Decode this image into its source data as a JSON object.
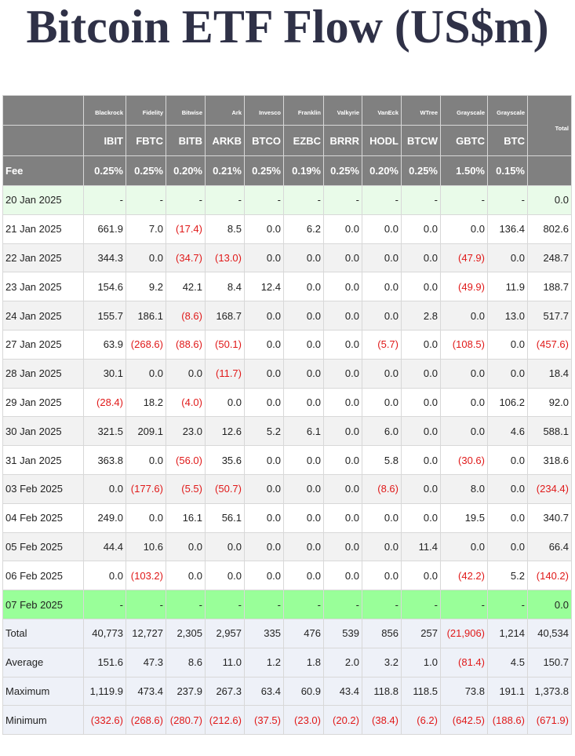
{
  "title": "Bitcoin ETF Flow (US$m)",
  "columns": [
    {
      "sponsor": "Blackrock",
      "ticker": "IBIT",
      "fee": "0.25%"
    },
    {
      "sponsor": "Fidelity",
      "ticker": "FBTC",
      "fee": "0.25%"
    },
    {
      "sponsor": "Bitwise",
      "ticker": "BITB",
      "fee": "0.20%"
    },
    {
      "sponsor": "Ark",
      "ticker": "ARKB",
      "fee": "0.21%"
    },
    {
      "sponsor": "Invesco",
      "ticker": "BTCO",
      "fee": "0.25%"
    },
    {
      "sponsor": "Franklin",
      "ticker": "EZBC",
      "fee": "0.19%"
    },
    {
      "sponsor": "Valkyrie",
      "ticker": "BRRR",
      "fee": "0.25%"
    },
    {
      "sponsor": "VanEck",
      "ticker": "HODL",
      "fee": "0.20%"
    },
    {
      "sponsor": "WTree",
      "ticker": "BTCW",
      "fee": "0.25%"
    },
    {
      "sponsor": "Grayscale",
      "ticker": "GBTC",
      "fee": "1.50%"
    },
    {
      "sponsor": "Grayscale",
      "ticker": "BTC",
      "fee": "0.15%"
    }
  ],
  "total_label": "Total",
  "fee_label": "Fee",
  "rows": [
    {
      "date": "20 Jan 2025",
      "style": "hl-light",
      "values": [
        "-",
        "-",
        "-",
        "-",
        "-",
        "-",
        "-",
        "-",
        "-",
        "-",
        "-"
      ],
      "total": "0.0"
    },
    {
      "date": "21 Jan 2025",
      "style": "even",
      "values": [
        "661.9",
        "7.0",
        "(17.4)",
        "8.5",
        "0.0",
        "6.2",
        "0.0",
        "0.0",
        "0.0",
        "0.0",
        "136.4"
      ],
      "total": "802.6"
    },
    {
      "date": "22 Jan 2025",
      "style": "odd",
      "values": [
        "344.3",
        "0.0",
        "(34.7)",
        "(13.0)",
        "0.0",
        "0.0",
        "0.0",
        "0.0",
        "0.0",
        "(47.9)",
        "0.0"
      ],
      "total": "248.7"
    },
    {
      "date": "23 Jan 2025",
      "style": "even",
      "values": [
        "154.6",
        "9.2",
        "42.1",
        "8.4",
        "12.4",
        "0.0",
        "0.0",
        "0.0",
        "0.0",
        "(49.9)",
        "11.9"
      ],
      "total": "188.7"
    },
    {
      "date": "24 Jan 2025",
      "style": "odd",
      "values": [
        "155.7",
        "186.1",
        "(8.6)",
        "168.7",
        "0.0",
        "0.0",
        "0.0",
        "0.0",
        "2.8",
        "0.0",
        "13.0"
      ],
      "total": "517.7"
    },
    {
      "date": "27 Jan 2025",
      "style": "even",
      "values": [
        "63.9",
        "(268.6)",
        "(88.6)",
        "(50.1)",
        "0.0",
        "0.0",
        "0.0",
        "(5.7)",
        "0.0",
        "(108.5)",
        "0.0"
      ],
      "total": "(457.6)"
    },
    {
      "date": "28 Jan 2025",
      "style": "odd",
      "values": [
        "30.1",
        "0.0",
        "0.0",
        "(11.7)",
        "0.0",
        "0.0",
        "0.0",
        "0.0",
        "0.0",
        "0.0",
        "0.0"
      ],
      "total": "18.4"
    },
    {
      "date": "29 Jan 2025",
      "style": "even",
      "values": [
        "(28.4)",
        "18.2",
        "(4.0)",
        "0.0",
        "0.0",
        "0.0",
        "0.0",
        "0.0",
        "0.0",
        "0.0",
        "106.2"
      ],
      "total": "92.0"
    },
    {
      "date": "30 Jan 2025",
      "style": "odd",
      "values": [
        "321.5",
        "209.1",
        "23.0",
        "12.6",
        "5.2",
        "6.1",
        "0.0",
        "6.0",
        "0.0",
        "0.0",
        "4.6"
      ],
      "total": "588.1"
    },
    {
      "date": "31 Jan 2025",
      "style": "even",
      "values": [
        "363.8",
        "0.0",
        "(56.0)",
        "35.6",
        "0.0",
        "0.0",
        "0.0",
        "5.8",
        "0.0",
        "(30.6)",
        "0.0"
      ],
      "total": "318.6"
    },
    {
      "date": "03 Feb 2025",
      "style": "odd",
      "values": [
        "0.0",
        "(177.6)",
        "(5.5)",
        "(50.7)",
        "0.0",
        "0.0",
        "0.0",
        "(8.6)",
        "0.0",
        "8.0",
        "0.0"
      ],
      "total": "(234.4)"
    },
    {
      "date": "04 Feb 2025",
      "style": "even",
      "values": [
        "249.0",
        "0.0",
        "16.1",
        "56.1",
        "0.0",
        "0.0",
        "0.0",
        "0.0",
        "0.0",
        "19.5",
        "0.0"
      ],
      "total": "340.7"
    },
    {
      "date": "05 Feb 2025",
      "style": "odd",
      "values": [
        "44.4",
        "10.6",
        "0.0",
        "0.0",
        "0.0",
        "0.0",
        "0.0",
        "0.0",
        "11.4",
        "0.0",
        "0.0"
      ],
      "total": "66.4"
    },
    {
      "date": "06 Feb 2025",
      "style": "even",
      "values": [
        "0.0",
        "(103.2)",
        "0.0",
        "0.0",
        "0.0",
        "0.0",
        "0.0",
        "0.0",
        "0.0",
        "(42.2)",
        "5.2"
      ],
      "total": "(140.2)"
    },
    {
      "date": "07 Feb 2025",
      "style": "hl-green",
      "values": [
        "-",
        "-",
        "-",
        "-",
        "-",
        "-",
        "-",
        "-",
        "-",
        "-",
        "-"
      ],
      "total": "0.0"
    }
  ],
  "stats": [
    {
      "label": "Total",
      "values": [
        "40,773",
        "12,727",
        "2,305",
        "2,957",
        "335",
        "476",
        "539",
        "856",
        "257",
        "(21,906)",
        "1,214"
      ],
      "total": "40,534"
    },
    {
      "label": "Average",
      "values": [
        "151.6",
        "47.3",
        "8.6",
        "11.0",
        "1.2",
        "1.8",
        "2.0",
        "3.2",
        "1.0",
        "(81.4)",
        "4.5"
      ],
      "total": "150.7"
    },
    {
      "label": "Maximum",
      "values": [
        "1,119.9",
        "473.4",
        "237.9",
        "267.3",
        "63.4",
        "60.9",
        "43.4",
        "118.8",
        "118.5",
        "73.8",
        "191.1"
      ],
      "total": "1,373.8"
    },
    {
      "label": "Minimum",
      "values": [
        "(332.6)",
        "(268.6)",
        "(280.7)",
        "(212.6)",
        "(37.5)",
        "(23.0)",
        "(20.2)",
        "(38.4)",
        "(6.2)",
        "(642.5)",
        "(188.6)"
      ],
      "total": "(671.9)"
    }
  ],
  "colors": {
    "header_bg": "#808080",
    "negative": "#e01919",
    "highlight_light": "#e9fbe9",
    "highlight_green": "#99ff99",
    "stats_bg": "#eef1f8"
  }
}
